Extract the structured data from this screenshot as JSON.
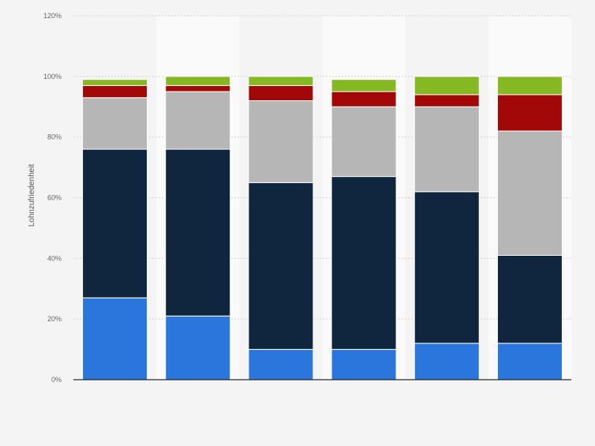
{
  "chart_data": {
    "type": "bar",
    "stacked": true,
    "ylabel": "Lohnzufriedenheit",
    "ylim": [
      0,
      120
    ],
    "yticks": [
      0,
      20,
      40,
      60,
      80,
      100,
      120
    ],
    "ytick_labels": [
      "0%",
      "20%",
      "40%",
      "60%",
      "80%",
      "100%",
      "120%"
    ],
    "grid": true,
    "categories": [
      "",
      "",
      "",
      "",
      "",
      ""
    ],
    "series": [
      {
        "color": "#2a76dd",
        "values": [
          27,
          21,
          10,
          10,
          12,
          12
        ]
      },
      {
        "color": "#10263f",
        "values": [
          49,
          55,
          55,
          57,
          50,
          29
        ]
      },
      {
        "color": "#b6b6b6",
        "values": [
          17,
          19,
          27,
          23,
          28,
          41
        ]
      },
      {
        "color": "#a30808",
        "values": [
          4,
          2,
          5,
          5,
          4,
          12
        ]
      },
      {
        "color": "#86b823",
        "values": [
          2,
          3,
          3,
          4,
          6,
          6
        ]
      }
    ]
  }
}
